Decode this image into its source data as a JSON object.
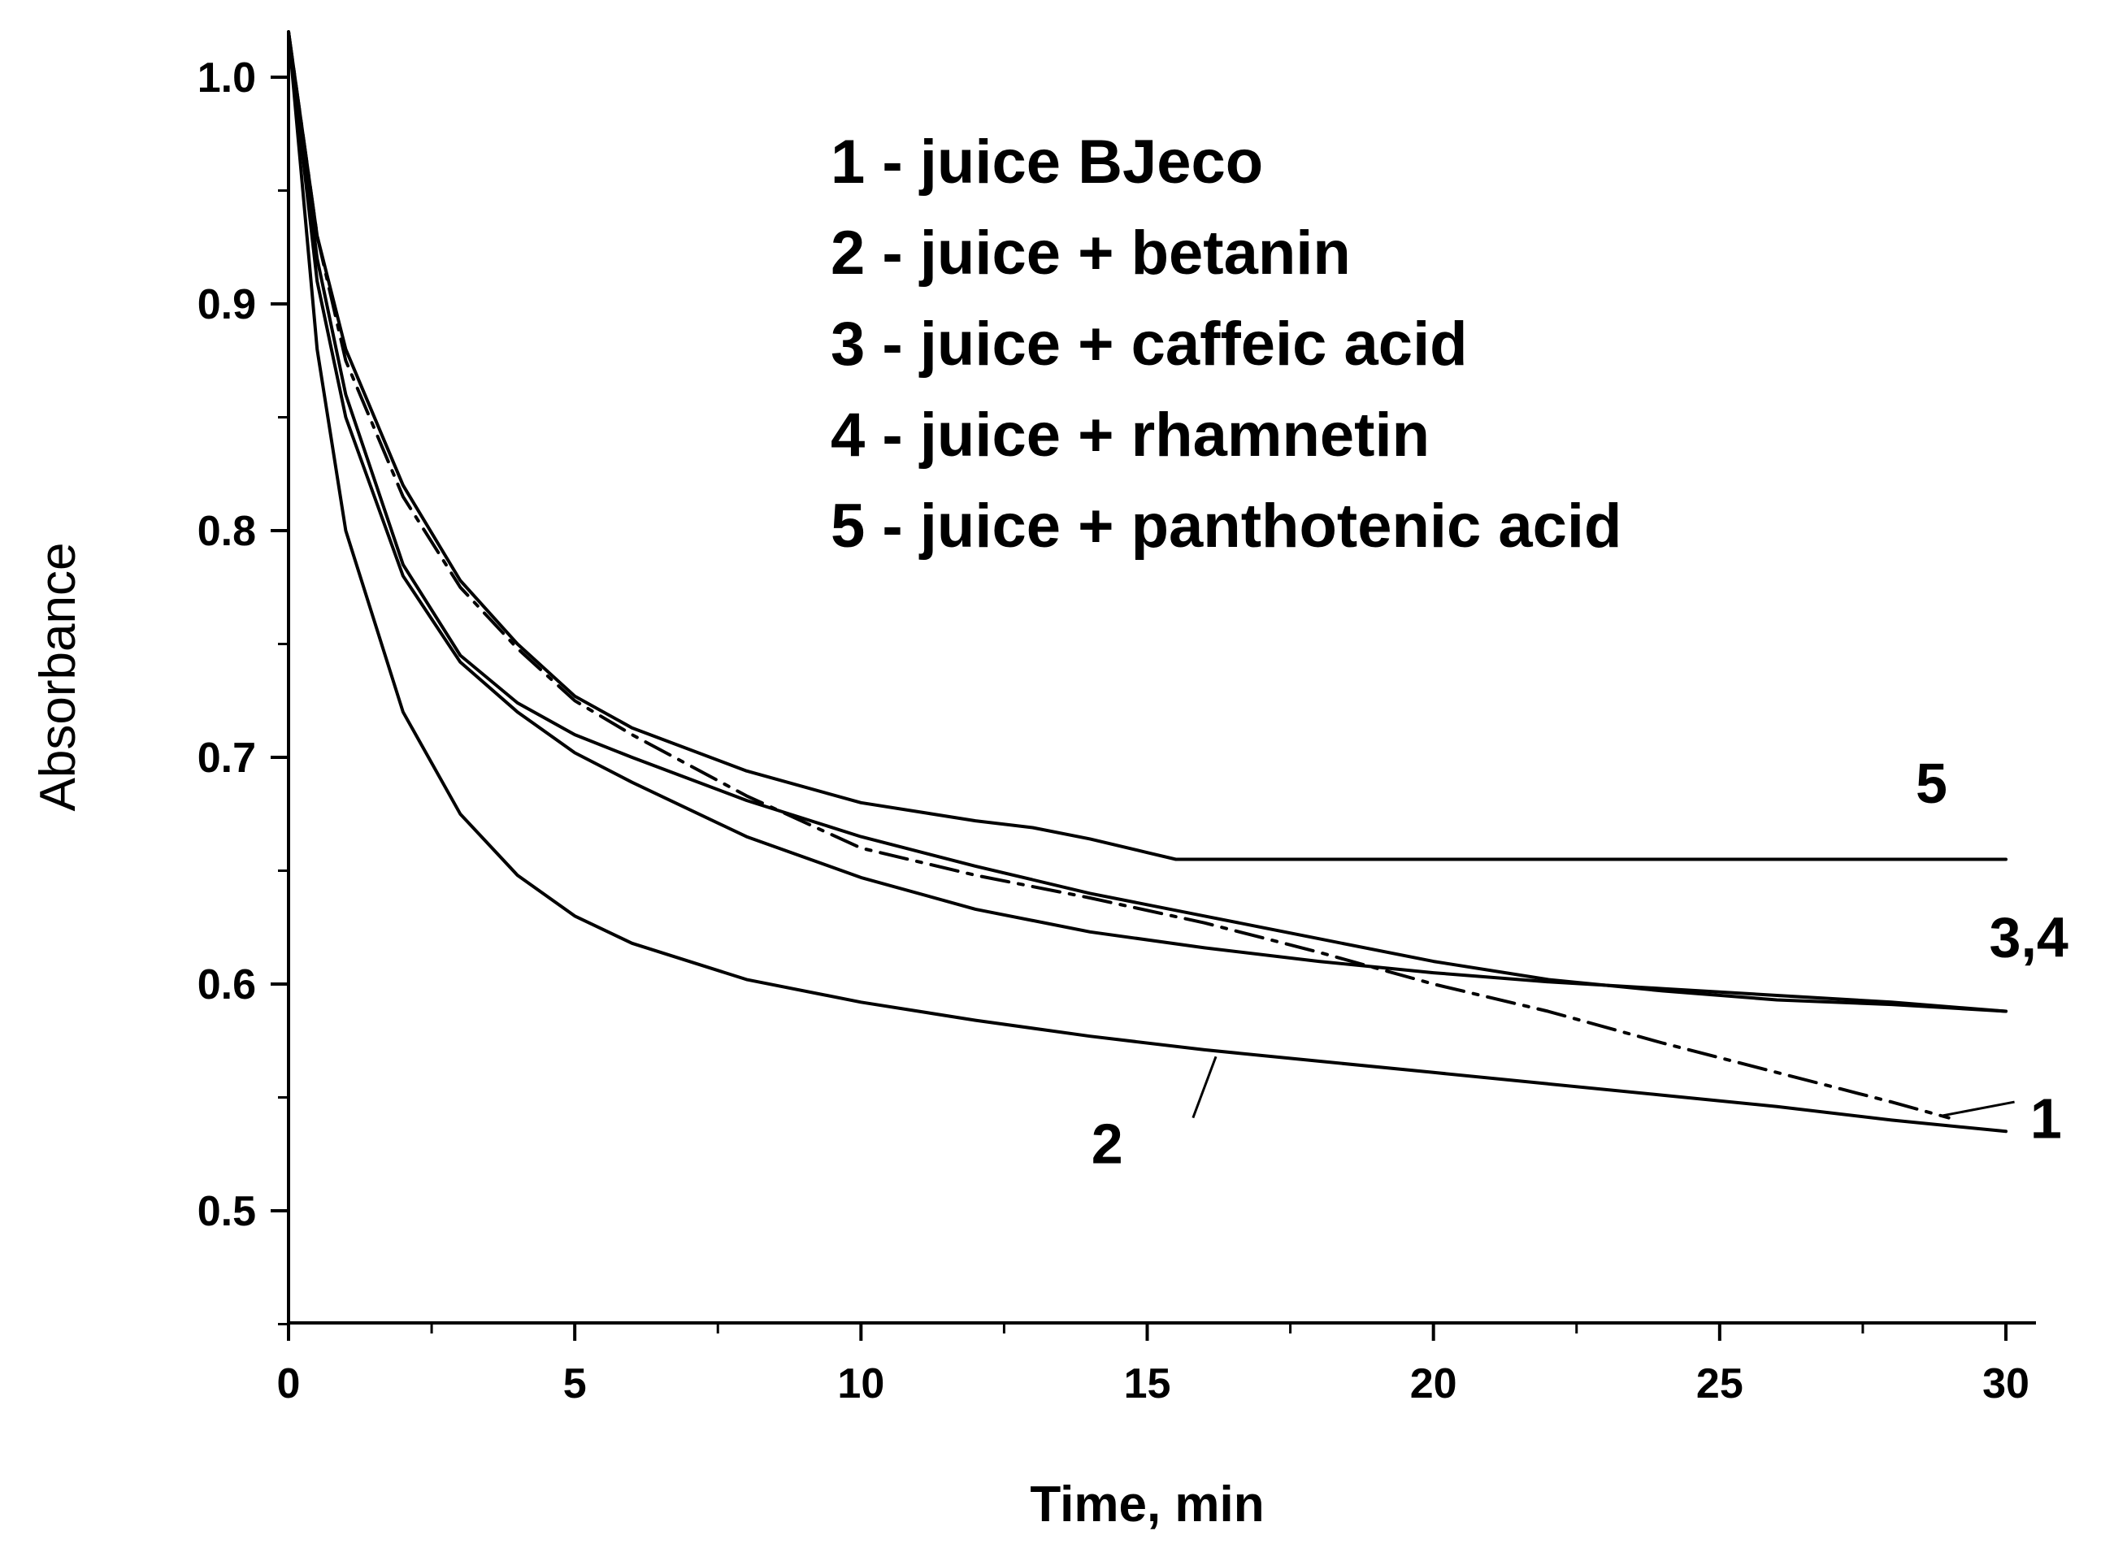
{
  "chart_data": {
    "type": "line",
    "xlabel": "Time, min",
    "ylabel": "Absorbance",
    "xlim": [
      0,
      30
    ],
    "ylim": [
      0.45,
      1.02
    ],
    "x_ticks": [
      0,
      5,
      10,
      15,
      20,
      25,
      30
    ],
    "x_tick_labels": [
      "0",
      "5",
      "10",
      "15",
      "20",
      "25",
      "30"
    ],
    "y_ticks": [
      0.5,
      0.6,
      0.7,
      0.8,
      0.9,
      1.0
    ],
    "y_tick_labels": [
      "0.5",
      "0.6",
      "0.7",
      "0.8",
      "0.9",
      "1.0"
    ],
    "legend_position": "top-center",
    "legend": [
      "1 - juice BJeco",
      "2 - juice + betanin",
      "3 - juice + caffeic acid",
      "4 - juice + rhamnetin",
      "5 - juice + panthotenic acid"
    ],
    "series": [
      {
        "name": "1 - juice BJeco",
        "style": "dash-dot",
        "x": [
          0,
          0.5,
          1,
          2,
          3,
          4,
          5,
          6,
          8,
          10,
          12,
          14,
          16,
          18,
          20,
          22,
          24,
          26,
          28,
          29
        ],
        "y": [
          1.02,
          0.93,
          0.875,
          0.815,
          0.775,
          0.748,
          0.725,
          0.71,
          0.683,
          0.66,
          0.648,
          0.638,
          0.627,
          0.614,
          0.6,
          0.588,
          0.574,
          0.561,
          0.548,
          0.541
        ]
      },
      {
        "name": "2 - juice + betanin",
        "style": "solid",
        "x": [
          0,
          0.5,
          1,
          2,
          3,
          4,
          5,
          6,
          8,
          10,
          12,
          14,
          16,
          18,
          20,
          22,
          24,
          26,
          28,
          30
        ],
        "y": [
          1.02,
          0.88,
          0.8,
          0.72,
          0.675,
          0.648,
          0.63,
          0.618,
          0.602,
          0.592,
          0.584,
          0.577,
          0.571,
          0.566,
          0.561,
          0.556,
          0.551,
          0.546,
          0.54,
          0.535
        ]
      },
      {
        "name": "3 - juice + caffeic acid",
        "style": "solid",
        "x": [
          0,
          0.5,
          1,
          2,
          3,
          4,
          5,
          6,
          8,
          10,
          12,
          14,
          16,
          18,
          20,
          22,
          24,
          26,
          28,
          30
        ],
        "y": [
          1.02,
          0.91,
          0.85,
          0.78,
          0.742,
          0.72,
          0.702,
          0.689,
          0.665,
          0.647,
          0.633,
          0.623,
          0.616,
          0.61,
          0.605,
          0.601,
          0.598,
          0.595,
          0.592,
          0.588
        ]
      },
      {
        "name": "4 - juice + rhamnetin",
        "style": "solid",
        "x": [
          0,
          0.5,
          1,
          2,
          3,
          4,
          5,
          6,
          8,
          10,
          12,
          14,
          16,
          18,
          20,
          22,
          24,
          26,
          28,
          30
        ],
        "y": [
          1.02,
          0.92,
          0.86,
          0.785,
          0.745,
          0.724,
          0.71,
          0.7,
          0.681,
          0.665,
          0.652,
          0.64,
          0.63,
          0.62,
          0.61,
          0.602,
          0.597,
          0.593,
          0.591,
          0.588
        ]
      },
      {
        "name": "5 - juice + panthotenic acid",
        "style": "solid",
        "x": [
          0,
          0.5,
          1,
          2,
          3,
          4,
          5,
          6,
          8,
          10,
          12,
          13,
          14,
          15,
          15.5,
          16,
          20,
          25,
          30
        ],
        "y": [
          1.02,
          0.93,
          0.88,
          0.82,
          0.778,
          0.75,
          0.727,
          0.713,
          0.694,
          0.68,
          0.672,
          0.669,
          0.664,
          0.658,
          0.655,
          0.655,
          0.655,
          0.655,
          0.655
        ]
      }
    ],
    "curve_labels": [
      {
        "text": "5",
        "x": 28.7,
        "y": 0.68
      },
      {
        "text": "3,4",
        "x": 30.4,
        "y": 0.612
      },
      {
        "text": "1",
        "x": 30.7,
        "y": 0.532
      },
      {
        "text": "2",
        "x": 14.3,
        "y": 0.521
      }
    ],
    "leader_lines": [
      {
        "x1": 28.9,
        "y1": 0.542,
        "x2": 30.15,
        "y2": 0.548
      },
      {
        "x1": 16.2,
        "y1": 0.568,
        "x2": 15.8,
        "y2": 0.541
      }
    ]
  }
}
